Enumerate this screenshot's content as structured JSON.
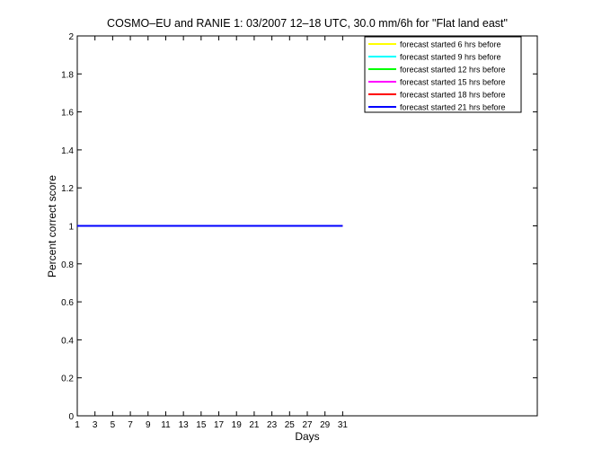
{
  "chart_data": {
    "type": "line",
    "title": "COSMO–EU and RANIE 1: 03/2007 12–18 UTC, 30.0 mm/6h for \"Flat land east\"",
    "xlabel": "Days",
    "ylabel": "Percent correct score",
    "xlim": [
      1,
      53
    ],
    "ylim": [
      0,
      2
    ],
    "xticks": [
      1,
      3,
      5,
      7,
      9,
      11,
      13,
      15,
      17,
      19,
      21,
      23,
      25,
      27,
      29,
      31
    ],
    "yticks": [
      0,
      0.2,
      0.4,
      0.6,
      0.8,
      1,
      1.2,
      1.4,
      1.6,
      1.8,
      2
    ],
    "ytick_labels": [
      "0",
      "0.2",
      "0.4",
      "0.6",
      "0.8",
      "1",
      "1.2",
      "1.4",
      "1.6",
      "1.8",
      "2"
    ],
    "grid": false,
    "legend_position": "top-right",
    "series": [
      {
        "name": "forecast started 6 hrs before",
        "color": "#ffff00",
        "x": [
          1,
          31
        ],
        "y": [
          1,
          1
        ]
      },
      {
        "name": "forecast started 9 hrs before",
        "color": "#00ffff",
        "x": [
          1,
          31
        ],
        "y": [
          1,
          1
        ]
      },
      {
        "name": "forecast started 12 hrs before",
        "color": "#00ff00",
        "x": [
          1,
          31
        ],
        "y": [
          1,
          1
        ]
      },
      {
        "name": "forecast started 15 hrs before",
        "color": "#ff00ff",
        "x": [
          1,
          31
        ],
        "y": [
          1,
          1
        ]
      },
      {
        "name": "forecast started 18 hrs before",
        "color": "#ff0000",
        "x": [
          1,
          31
        ],
        "y": [
          1,
          1
        ]
      },
      {
        "name": "forecast started 21 hrs before",
        "color": "#0000ff",
        "x": [
          1,
          31
        ],
        "y": [
          1,
          1
        ]
      }
    ]
  }
}
